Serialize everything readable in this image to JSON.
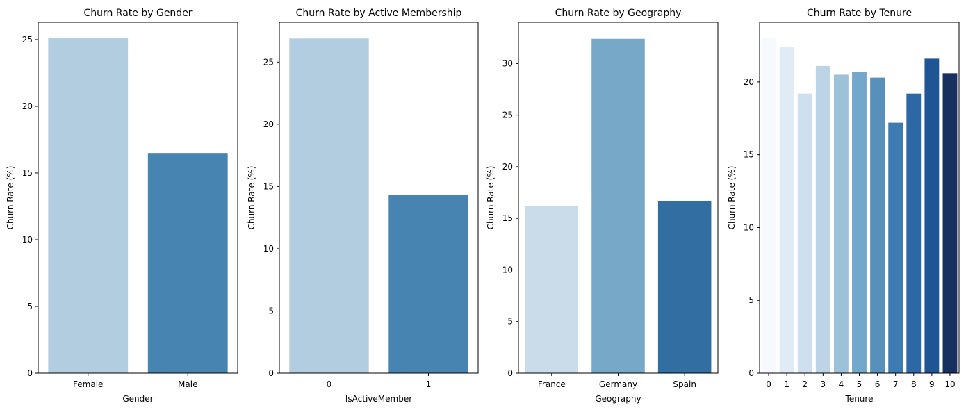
{
  "chart_data": [
    {
      "type": "bar",
      "title": "Churn Rate by Gender",
      "xlabel": "Gender",
      "ylabel": "Churn Rate (%)",
      "categories": [
        "Female",
        "Male"
      ],
      "values": [
        25.1,
        16.5
      ],
      "colors": [
        "#b3cde0",
        "#4884b1"
      ],
      "ylim": [
        0,
        26.3
      ],
      "yticks": [
        0,
        5,
        10,
        15,
        20,
        25
      ],
      "grid": false
    },
    {
      "type": "bar",
      "title": "Churn Rate by Active Membership",
      "xlabel": "IsActiveMember",
      "ylabel": "Churn Rate (%)",
      "categories": [
        "0",
        "1"
      ],
      "values": [
        26.9,
        14.3
      ],
      "colors": [
        "#b3cde0",
        "#4884b1"
      ],
      "ylim": [
        0,
        28.2
      ],
      "yticks": [
        0,
        5,
        10,
        15,
        20,
        25
      ],
      "grid": false
    },
    {
      "type": "bar",
      "title": "Churn Rate by Geography",
      "xlabel": "Geography",
      "ylabel": "Churn Rate (%)",
      "categories": [
        "France",
        "Germany",
        "Spain"
      ],
      "values": [
        16.2,
        32.4,
        16.7
      ],
      "colors": [
        "#cadbea",
        "#78a8c8",
        "#336ea3"
      ],
      "ylim": [
        0,
        34.0
      ],
      "yticks": [
        0,
        5,
        10,
        15,
        20,
        25,
        30
      ],
      "grid": false
    },
    {
      "type": "bar",
      "title": "Churn Rate by Tenure",
      "xlabel": "Tenure",
      "ylabel": "Churn Rate (%)",
      "categories": [
        "0",
        "1",
        "2",
        "3",
        "4",
        "5",
        "6",
        "7",
        "8",
        "9",
        "10"
      ],
      "values": [
        23.0,
        22.4,
        19.2,
        21.1,
        20.5,
        20.7,
        20.3,
        17.2,
        19.2,
        21.6,
        20.6
      ],
      "colors": [
        "#f6f9fd",
        "#e1ebf6",
        "#cedfef",
        "#bdd4e6",
        "#9dc1d9",
        "#73a7cb",
        "#5890bc",
        "#3e7bb2",
        "#2e67a5",
        "#1f5595",
        "#17305e"
      ],
      "ylim": [
        0,
        24.1
      ],
      "yticks": [
        0,
        5,
        10,
        15,
        20
      ],
      "grid": false
    }
  ]
}
